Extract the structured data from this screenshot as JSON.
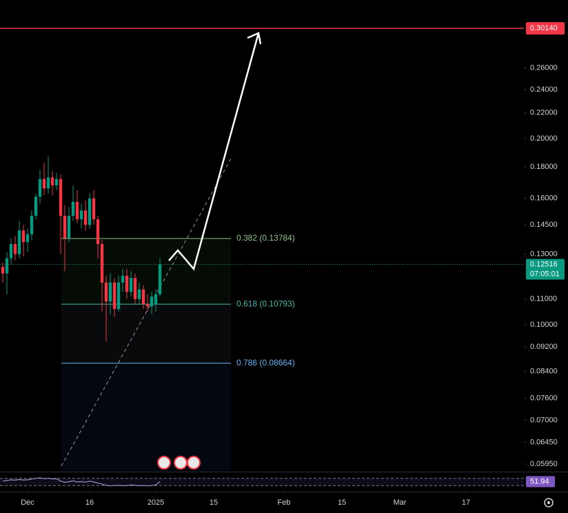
{
  "chart_data": {
    "type": "candlestick",
    "log_scale": true,
    "x": [
      -6,
      -5,
      -4,
      -3,
      -2,
      -1,
      0,
      1,
      2,
      3,
      4,
      5,
      6,
      7,
      8,
      9,
      10,
      11,
      12,
      13,
      14,
      15,
      16,
      17,
      18,
      19,
      20,
      21,
      22,
      23,
      24,
      25,
      26,
      27,
      28,
      29,
      30,
      31,
      32
    ],
    "open": [
      0.124,
      0.121,
      0.128,
      0.135,
      0.13,
      0.142,
      0.136,
      0.14,
      0.15,
      0.161,
      0.172,
      0.166,
      0.173,
      0.168,
      0.172,
      0.15,
      0.138,
      0.15,
      0.158,
      0.148,
      0.153,
      0.145,
      0.16,
      0.148,
      0.135,
      0.117,
      0.109,
      0.117,
      0.106,
      0.117,
      0.12,
      0.113,
      0.119,
      0.11,
      0.114,
      0.108,
      0.107,
      0.108,
      0.112
    ],
    "close": [
      0.121,
      0.128,
      0.135,
      0.13,
      0.142,
      0.136,
      0.14,
      0.15,
      0.161,
      0.172,
      0.166,
      0.173,
      0.168,
      0.172,
      0.15,
      0.138,
      0.15,
      0.158,
      0.148,
      0.153,
      0.145,
      0.16,
      0.148,
      0.135,
      0.117,
      0.109,
      0.117,
      0.106,
      0.117,
      0.12,
      0.113,
      0.119,
      0.11,
      0.114,
      0.108,
      0.107,
      0.111,
      0.112,
      0.12516
    ],
    "high": [
      0.126,
      0.131,
      0.138,
      0.139,
      0.147,
      0.145,
      0.143,
      0.153,
      0.163,
      0.178,
      0.183,
      0.187,
      0.177,
      0.176,
      0.175,
      0.156,
      0.155,
      0.168,
      0.165,
      0.157,
      0.159,
      0.163,
      0.165,
      0.15,
      0.137,
      0.12,
      0.121,
      0.119,
      0.12,
      0.123,
      0.123,
      0.122,
      0.121,
      0.117,
      0.116,
      0.112,
      0.113,
      0.114,
      0.128
    ],
    "low": [
      0.117,
      0.112,
      0.125,
      0.127,
      0.128,
      0.129,
      0.131,
      0.137,
      0.148,
      0.157,
      0.162,
      0.163,
      0.162,
      0.165,
      0.13,
      0.122,
      0.136,
      0.147,
      0.146,
      0.143,
      0.142,
      0.143,
      0.145,
      0.128,
      0.105,
      0.094,
      0.104,
      0.103,
      0.105,
      0.113,
      0.11,
      0.111,
      0.108,
      0.108,
      0.106,
      0.105,
      0.104,
      0.105,
      0.111
    ],
    "up_color": "#089981",
    "down_color": "#f23645",
    "xlim": [
      -6.67,
      120
    ],
    "xticks": [
      {
        "value": 0,
        "label": "Dec"
      },
      {
        "value": 15,
        "label": "16"
      },
      {
        "value": 31,
        "label": "2025"
      },
      {
        "value": 45,
        "label": "15"
      },
      {
        "value": 62,
        "label": "Feb"
      },
      {
        "value": 76,
        "label": "15"
      },
      {
        "value": 90,
        "label": "Mar"
      },
      {
        "value": 106,
        "label": "17"
      }
    ],
    "ylim": [
      0.058,
      0.335
    ],
    "yticks": [
      {
        "value": 0.26,
        "label": "0.26000"
      },
      {
        "value": 0.24,
        "label": "0.24000"
      },
      {
        "value": 0.22,
        "label": "0.22000"
      },
      {
        "value": 0.2,
        "label": "0.20000"
      },
      {
        "value": 0.18,
        "label": "0.18000"
      },
      {
        "value": 0.16,
        "label": "0.16000"
      },
      {
        "value": 0.145,
        "label": "0.14500"
      },
      {
        "value": 0.13,
        "label": "0.13000"
      },
      {
        "value": 0.11,
        "label": "0.11000"
      },
      {
        "value": 0.1,
        "label": "0.10000"
      },
      {
        "value": 0.092,
        "label": "0.09200"
      },
      {
        "value": 0.084,
        "label": "0.08400"
      },
      {
        "value": 0.076,
        "label": "0.07600"
      },
      {
        "value": 0.07,
        "label": "0.07000"
      },
      {
        "value": 0.0645,
        "label": "0.06450"
      },
      {
        "value": 0.0595,
        "label": "0.05950"
      }
    ],
    "target_line": {
      "value": 0.3014,
      "label": "0.30140",
      "color": "#f23645"
    },
    "last_price": {
      "value": 0.12516,
      "countdown": "07:05:01",
      "color": "#089981"
    },
    "fib_levels": [
      {
        "value": 0.13784,
        "label": "0.382 (0.13784)",
        "color": "#8bc48a"
      },
      {
        "value": 0.10793,
        "label": "0.618 (0.10793)",
        "color": "#4db6ac"
      },
      {
        "value": 0.08664,
        "label": "0.786 (0.08664)",
        "color": "#64b5f6"
      }
    ],
    "rsi": {
      "values": [
        55,
        58,
        62,
        60,
        64,
        61,
        62,
        66,
        70,
        74,
        68,
        71,
        67,
        68,
        55,
        48,
        52,
        56,
        50,
        52,
        49,
        55,
        50,
        44,
        38,
        32,
        28,
        30,
        31,
        29,
        30,
        33,
        31,
        29,
        30,
        28,
        30,
        33,
        51.94
      ],
      "ylim": [
        0,
        100
      ],
      "levels": [
        30,
        70
      ],
      "color": "#9c8fc4"
    }
  }
}
